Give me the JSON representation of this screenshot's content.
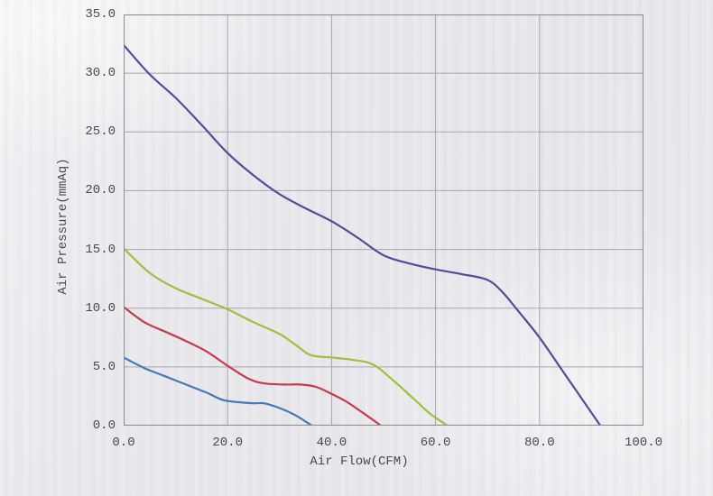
{
  "chart_data": {
    "type": "line",
    "title": "",
    "xlabel": "Air Flow(CFM)",
    "ylabel": "Air Pressure(mmAq)",
    "xlim": [
      0,
      100
    ],
    "ylim": [
      0,
      35
    ],
    "grid": true,
    "legend_position": "none",
    "x_tick_values": [
      0,
      20,
      40,
      60,
      80,
      100
    ],
    "x_tick_labels": [
      "0.0",
      "20.0",
      "40.0",
      "60.0",
      "80.0",
      "100.0"
    ],
    "y_tick_values": [
      0,
      5,
      10,
      15,
      20,
      25,
      30,
      35
    ],
    "y_tick_labels": [
      "0.0",
      "5.0",
      "10.0",
      "15.0",
      "20.0",
      "25.0",
      "30.0",
      "35.0"
    ],
    "series": [
      {
        "name": "curve-purple",
        "color": "#5a4a96",
        "points": [
          [
            0,
            32.4
          ],
          [
            5,
            29.9
          ],
          [
            10,
            27.9
          ],
          [
            15,
            25.6
          ],
          [
            20,
            23.2
          ],
          [
            25,
            21.3
          ],
          [
            30,
            19.7
          ],
          [
            35,
            18.5
          ],
          [
            40,
            17.4
          ],
          [
            45,
            16.0
          ],
          [
            50,
            14.5
          ],
          [
            55,
            13.8
          ],
          [
            60,
            13.3
          ],
          [
            65,
            12.9
          ],
          [
            70,
            12.4
          ],
          [
            73,
            11.3
          ],
          [
            76,
            9.7
          ],
          [
            80,
            7.5
          ],
          [
            85,
            4.3
          ],
          [
            90,
            1.1
          ],
          [
            91.7,
            0
          ]
        ]
      },
      {
        "name": "curve-green",
        "color": "#9cc13d",
        "points": [
          [
            0,
            15.1
          ],
          [
            5,
            13.0
          ],
          [
            10,
            11.7
          ],
          [
            15,
            10.8
          ],
          [
            20,
            9.9
          ],
          [
            25,
            8.8
          ],
          [
            30,
            7.8
          ],
          [
            33,
            6.9
          ],
          [
            36,
            6.0
          ],
          [
            40,
            5.8
          ],
          [
            44,
            5.6
          ],
          [
            48,
            5.2
          ],
          [
            52,
            3.8
          ],
          [
            56,
            2.2
          ],
          [
            59,
            1.0
          ],
          [
            62.3,
            0
          ]
        ]
      },
      {
        "name": "curve-red",
        "color": "#c53c48",
        "points": [
          [
            0,
            10.1
          ],
          [
            4,
            8.8
          ],
          [
            8,
            8.0
          ],
          [
            12,
            7.2
          ],
          [
            16,
            6.3
          ],
          [
            20,
            5.1
          ],
          [
            24,
            4.0
          ],
          [
            27,
            3.6
          ],
          [
            31,
            3.5
          ],
          [
            34,
            3.5
          ],
          [
            37,
            3.3
          ],
          [
            40,
            2.7
          ],
          [
            43,
            2.0
          ],
          [
            46,
            1.1
          ],
          [
            49.5,
            0
          ]
        ]
      },
      {
        "name": "curve-blue",
        "color": "#4678b6",
        "points": [
          [
            0,
            5.8
          ],
          [
            4,
            4.9
          ],
          [
            8,
            4.2
          ],
          [
            12,
            3.5
          ],
          [
            16,
            2.8
          ],
          [
            19,
            2.2
          ],
          [
            22,
            2.0
          ],
          [
            25,
            1.9
          ],
          [
            27,
            1.9
          ],
          [
            30,
            1.5
          ],
          [
            33,
            0.9
          ],
          [
            36.2,
            0
          ]
        ]
      }
    ]
  },
  "colors": {
    "grid": "#a7a7ac",
    "border": "#8f8f95",
    "text": "#48484e",
    "background": "#e9e8ec"
  }
}
